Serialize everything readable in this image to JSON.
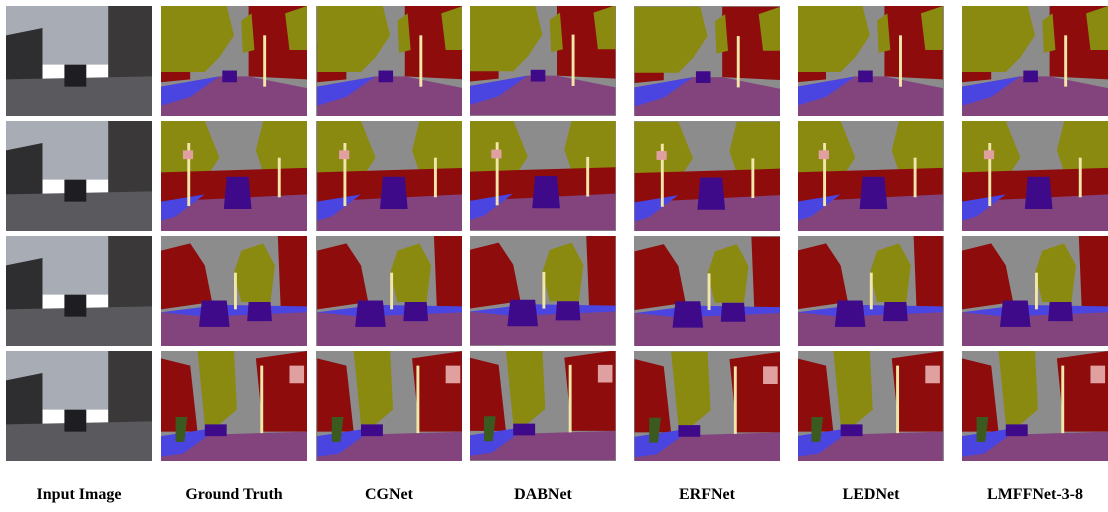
{
  "figure": {
    "columns": [
      "Input Image",
      "Ground Truth",
      "CGNet",
      "DABNet",
      "ERFNet",
      "LEDNet",
      "LMFFNet-3-8"
    ]
  }
}
